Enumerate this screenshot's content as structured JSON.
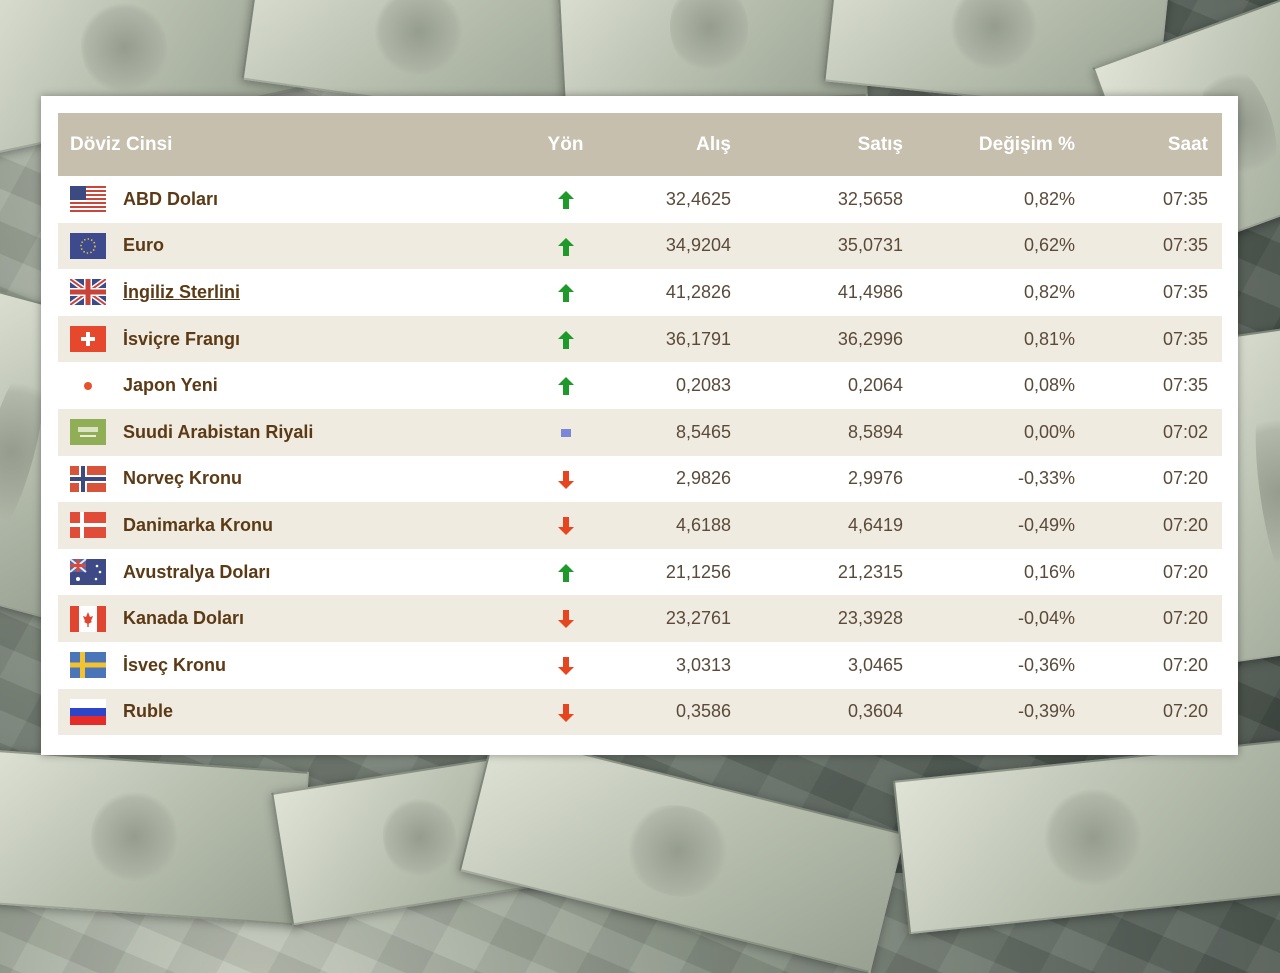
{
  "table": {
    "headers": {
      "name": "Döviz Cinsi",
      "direction": "Yön",
      "buy": "Alış",
      "sell": "Satış",
      "change": "Değişim %",
      "time": "Saat"
    },
    "rows": [
      {
        "name": "ABD Doları",
        "flag": "usa-flag-icon",
        "direction": "up",
        "buy": "32,4625",
        "sell": "32,5658",
        "change": "0,82%",
        "time": "07:35"
      },
      {
        "name": "Euro",
        "flag": "eu-flag-icon",
        "direction": "up",
        "buy": "34,9204",
        "sell": "35,0731",
        "change": "0,62%",
        "time": "07:35"
      },
      {
        "name": "İngiliz Sterlini",
        "flag": "uk-flag-icon",
        "direction": "up",
        "buy": "41,2826",
        "sell": "41,4986",
        "change": "0,82%",
        "time": "07:35"
      },
      {
        "name": "İsviçre Frangı",
        "flag": "swiss-flag-icon",
        "direction": "up",
        "buy": "36,1791",
        "sell": "36,2996",
        "change": "0,81%",
        "time": "07:35"
      },
      {
        "name": "Japon Yeni",
        "flag": "japan-flag-icon",
        "direction": "up",
        "buy": "0,2083",
        "sell": "0,2064",
        "change": "0,08%",
        "time": "07:35"
      },
      {
        "name": "Suudi Arabistan Riyali",
        "flag": "saudi-flag-icon",
        "direction": "flat",
        "buy": "8,5465",
        "sell": "8,5894",
        "change": "0,00%",
        "time": "07:02"
      },
      {
        "name": "Norveç Kronu",
        "flag": "norway-flag-icon",
        "direction": "down",
        "buy": "2,9826",
        "sell": "2,9976",
        "change": "-0,33%",
        "time": "07:20"
      },
      {
        "name": "Danimarka Kronu",
        "flag": "denmark-flag-icon",
        "direction": "down",
        "buy": "4,6188",
        "sell": "4,6419",
        "change": "-0,49%",
        "time": "07:20"
      },
      {
        "name": "Avustralya Doları",
        "flag": "australia-flag-icon",
        "direction": "up",
        "buy": "21,1256",
        "sell": "21,2315",
        "change": "0,16%",
        "time": "07:20"
      },
      {
        "name": "Kanada Doları",
        "flag": "canada-flag-icon",
        "direction": "down",
        "buy": "23,2761",
        "sell": "23,3928",
        "change": "-0,04%",
        "time": "07:20"
      },
      {
        "name": "İsveç Kronu",
        "flag": "sweden-flag-icon",
        "direction": "down",
        "buy": "3,0313",
        "sell": "3,0465",
        "change": "-0,36%",
        "time": "07:20"
      },
      {
        "name": "Ruble",
        "flag": "russia-flag-icon",
        "direction": "down",
        "buy": "0,3586",
        "sell": "0,3604",
        "change": "-0,39%",
        "time": "07:20"
      }
    ]
  },
  "colors": {
    "header_bg": "#c6bfae",
    "row_alt_bg": "#f0ebe0",
    "name_text": "#5b3a15",
    "value_text": "#5a4a3a",
    "up_arrow": "#1e9a2a",
    "down_arrow": "#e5461f",
    "flat_marker": "#7a86d8"
  }
}
